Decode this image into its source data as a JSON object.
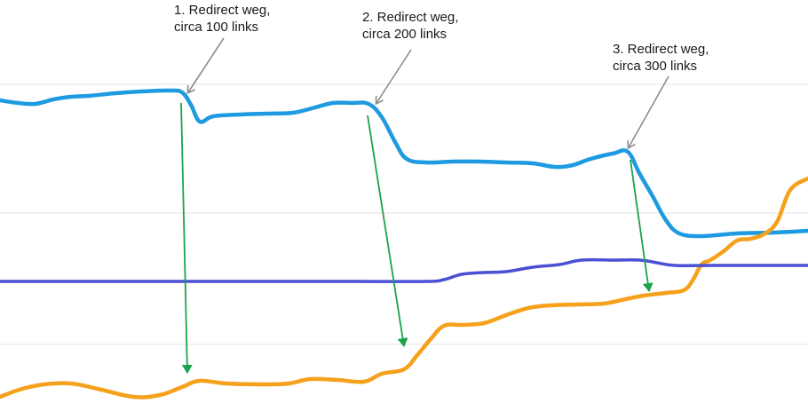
{
  "chart_data": {
    "type": "line",
    "title": "",
    "xlabel": "",
    "ylabel": "",
    "grid": true,
    "legend": "none",
    "series": [
      {
        "color": "#1e9be0",
        "points": [
          [
            0,
            113
          ],
          [
            20,
            116
          ],
          [
            40,
            117
          ],
          [
            60,
            112
          ],
          [
            80,
            109
          ],
          [
            100,
            108
          ],
          [
            130,
            105
          ],
          [
            160,
            103
          ],
          [
            190,
            102
          ],
          [
            205,
            104
          ],
          [
            215,
            118
          ],
          [
            225,
            137
          ],
          [
            240,
            131
          ],
          [
            270,
            129
          ],
          [
            300,
            128
          ],
          [
            330,
            127
          ],
          [
            355,
            121
          ],
          [
            375,
            116
          ],
          [
            395,
            116
          ],
          [
            415,
            117
          ],
          [
            430,
            132
          ],
          [
            445,
            160
          ],
          [
            458,
            179
          ],
          [
            480,
            183
          ],
          [
            510,
            182
          ],
          [
            540,
            182
          ],
          [
            570,
            183
          ],
          [
            600,
            184
          ],
          [
            625,
            188
          ],
          [
            645,
            186
          ],
          [
            665,
            179
          ],
          [
            690,
            173
          ],
          [
            707,
            171
          ],
          [
            720,
            195
          ],
          [
            735,
            221
          ],
          [
            750,
            248
          ],
          [
            765,
            263
          ],
          [
            790,
            266
          ],
          [
            830,
            263
          ],
          [
            870,
            262
          ],
          [
            910,
            260
          ]
        ]
      },
      {
        "color": "#f5a11b",
        "points": [
          [
            0,
            447
          ],
          [
            25,
            438
          ],
          [
            50,
            433
          ],
          [
            80,
            432
          ],
          [
            110,
            438
          ],
          [
            150,
            447
          ],
          [
            180,
            445
          ],
          [
            205,
            436
          ],
          [
            225,
            429
          ],
          [
            255,
            432
          ],
          [
            300,
            433
          ],
          [
            325,
            432
          ],
          [
            350,
            427
          ],
          [
            380,
            428
          ],
          [
            410,
            430
          ],
          [
            430,
            421
          ],
          [
            455,
            416
          ],
          [
            470,
            400
          ],
          [
            485,
            382
          ],
          [
            500,
            367
          ],
          [
            520,
            366
          ],
          [
            545,
            364
          ],
          [
            570,
            355
          ],
          [
            595,
            347
          ],
          [
            620,
            344
          ],
          [
            650,
            343
          ],
          [
            680,
            342
          ],
          [
            700,
            338
          ],
          [
            725,
            333
          ],
          [
            750,
            330
          ],
          [
            770,
            327
          ],
          [
            780,
            316
          ],
          [
            790,
            298
          ],
          [
            800,
            293
          ],
          [
            815,
            283
          ],
          [
            830,
            271
          ],
          [
            845,
            269
          ],
          [
            860,
            264
          ],
          [
            875,
            250
          ],
          [
            890,
            214
          ],
          [
            910,
            201
          ]
        ]
      },
      {
        "color": "#4a4fd4",
        "points": [
          [
            0,
            317
          ],
          [
            100,
            317
          ],
          [
            200,
            317
          ],
          [
            300,
            317
          ],
          [
            400,
            317
          ],
          [
            480,
            317
          ],
          [
            500,
            315
          ],
          [
            520,
            309
          ],
          [
            545,
            307
          ],
          [
            570,
            306
          ],
          [
            600,
            301
          ],
          [
            630,
            298
          ],
          [
            655,
            293
          ],
          [
            690,
            293
          ],
          [
            720,
            293
          ],
          [
            740,
            296
          ],
          [
            760,
            299
          ],
          [
            800,
            299
          ],
          [
            850,
            299
          ],
          [
            910,
            299
          ]
        ]
      }
    ],
    "gridlines_y": [
      95,
      240,
      388
    ],
    "annotations": [
      {
        "lines": [
          "1. Redirect weg,",
          "circa 100 links"
        ]
      },
      {
        "lines": [
          "2. Redirect weg,",
          "circa 200 links"
        ]
      },
      {
        "lines": [
          "3. Redirect weg,",
          "circa 300 links"
        ]
      }
    ],
    "pointer_arrow_color": "#8c8c8c",
    "drop_arrow_color": "#1aa34a"
  }
}
